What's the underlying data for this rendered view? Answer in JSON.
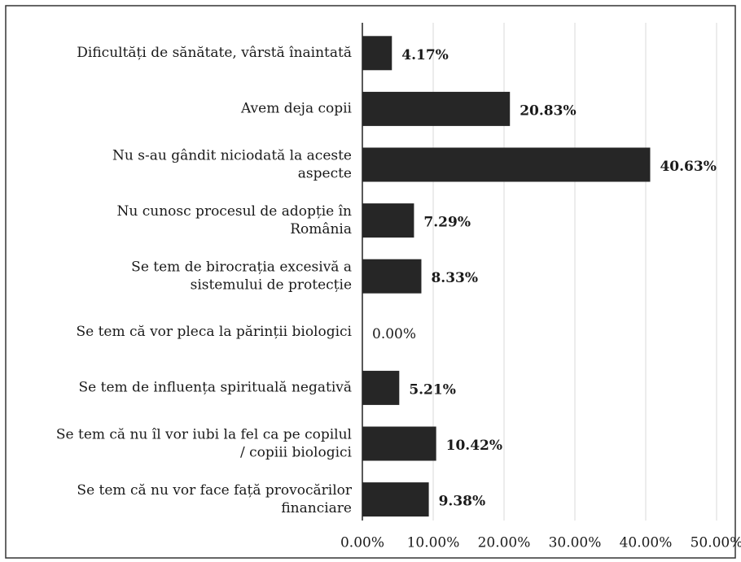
{
  "chart_data": {
    "type": "hbar",
    "categories": [
      "Dificultăți de sănătate, vârstă înaintată",
      "Avem deja copii",
      "Nu s-au gândit niciodată la aceste\naspecte",
      "Nu cunosc procesul de adopție în\nRomânia",
      "Se tem de birocrația excesivă a\nsistemului de protecție",
      "Se tem că vor pleca la părinții biologici",
      "Se tem de influența spirituală negativă",
      "Se tem că nu îl vor iubi la fel ca pe copilul\n/ copiii biologici",
      "Se tem că nu vor face față provocărilor\nfinanciare"
    ],
    "values": [
      4.17,
      20.83,
      40.63,
      7.29,
      8.33,
      0,
      5.21,
      10.42,
      9.38
    ],
    "value_labels": [
      "4.17%",
      "20.83%",
      "40.63%",
      "7.29%",
      "8.33%",
      "0.00%",
      "5.21%",
      "10.42%",
      "9.38%"
    ],
    "color": "#262626",
    "xlim": [
      0,
      50
    ],
    "xticks": [
      {
        "value": 0,
        "label": "0.00%"
      },
      {
        "value": 10,
        "label": "10.00%"
      },
      {
        "value": 20,
        "label": "20.00%"
      },
      {
        "value": 30,
        "label": "30.00%"
      },
      {
        "value": 40,
        "label": "40.00%"
      },
      {
        "value": 50,
        "label": "50.00%"
      }
    ],
    "grid": true
  }
}
